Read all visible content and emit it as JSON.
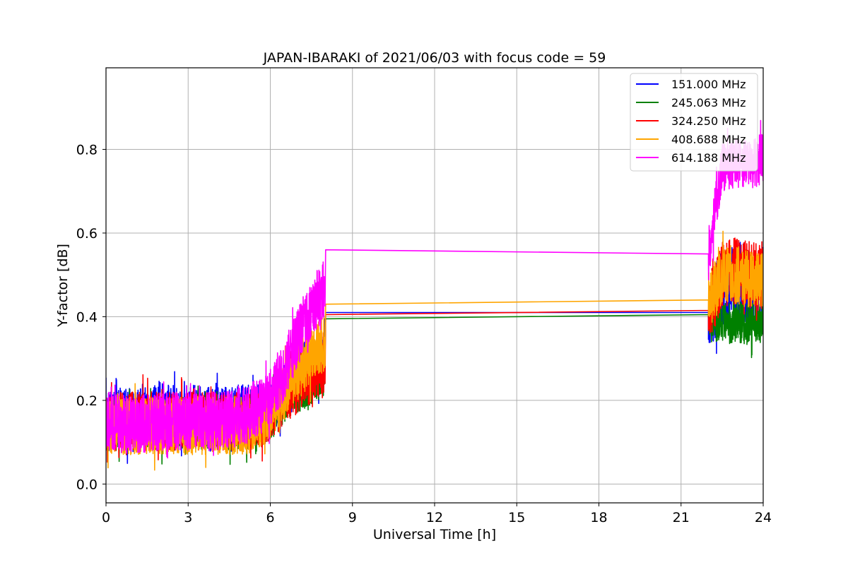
{
  "chart_data": {
    "type": "line",
    "title": "JAPAN-IBARAKI of 2021/06/03 with focus code = 59",
    "xlabel": "Universal Time [h]",
    "ylabel": "Y-factor [dB]",
    "xlim": [
      0,
      24
    ],
    "ylim": [
      -0.045,
      0.995
    ],
    "xticks": [
      0,
      3,
      6,
      9,
      12,
      15,
      18,
      21,
      24
    ],
    "xtick_labels": [
      "0",
      "3",
      "6",
      "9",
      "12",
      "15",
      "18",
      "21",
      "24"
    ],
    "yticks": [
      0.0,
      0.2,
      0.4,
      0.6,
      0.8
    ],
    "ytick_labels": [
      "0.0",
      "0.2",
      "0.4",
      "0.6",
      "0.8"
    ],
    "grid": true,
    "legend_position": "top-right",
    "series": [
      {
        "name": "151.000 MHz",
        "color": "#0000ff",
        "points": [
          [
            0.0,
            0.16
          ],
          [
            1.0,
            0.16
          ],
          [
            2.0,
            0.17
          ],
          [
            3.0,
            0.17
          ],
          [
            4.0,
            0.16
          ],
          [
            5.0,
            0.17
          ],
          [
            6.0,
            0.18
          ],
          [
            6.5,
            0.22
          ],
          [
            7.0,
            0.26
          ],
          [
            7.5,
            0.28
          ],
          [
            8.0,
            0.3
          ],
          [
            8.02,
            0.41
          ],
          [
            22.0,
            0.41
          ],
          [
            22.5,
            0.47
          ],
          [
            23.0,
            0.48
          ],
          [
            23.5,
            0.47
          ],
          [
            24.0,
            0.48
          ]
        ],
        "noise": [
          {
            "x_start": 0.0,
            "x_end": 8.0,
            "amplitude": 0.07
          },
          {
            "x_start": 22.0,
            "x_end": 24.0,
            "amplitude": 0.09
          }
        ]
      },
      {
        "name": "245.063 MHz",
        "color": "#008000",
        "points": [
          [
            0.0,
            0.14
          ],
          [
            1.0,
            0.14
          ],
          [
            2.0,
            0.14
          ],
          [
            3.0,
            0.14
          ],
          [
            4.0,
            0.14
          ],
          [
            5.0,
            0.14
          ],
          [
            6.0,
            0.16
          ],
          [
            6.5,
            0.2
          ],
          [
            7.0,
            0.23
          ],
          [
            7.5,
            0.25
          ],
          [
            8.0,
            0.27
          ],
          [
            8.02,
            0.395
          ],
          [
            22.0,
            0.405
          ],
          [
            22.5,
            0.38
          ],
          [
            23.0,
            0.39
          ],
          [
            23.5,
            0.38
          ],
          [
            24.0,
            0.39
          ]
        ],
        "noise": [
          {
            "x_start": 0.0,
            "x_end": 8.0,
            "amplitude": 0.06
          },
          {
            "x_start": 22.0,
            "x_end": 24.0,
            "amplitude": 0.05
          }
        ]
      },
      {
        "name": "324.250 MHz",
        "color": "#ff0000",
        "points": [
          [
            0.0,
            0.15
          ],
          [
            1.0,
            0.15
          ],
          [
            2.0,
            0.15
          ],
          [
            3.0,
            0.15
          ],
          [
            4.0,
            0.15
          ],
          [
            5.0,
            0.15
          ],
          [
            6.0,
            0.17
          ],
          [
            6.5,
            0.21
          ],
          [
            7.0,
            0.24
          ],
          [
            7.5,
            0.26
          ],
          [
            8.0,
            0.28
          ],
          [
            8.02,
            0.405
          ],
          [
            22.0,
            0.415
          ],
          [
            22.5,
            0.5
          ],
          [
            23.0,
            0.51
          ],
          [
            23.5,
            0.5
          ],
          [
            24.0,
            0.5
          ]
        ],
        "noise": [
          {
            "x_start": 0.0,
            "x_end": 8.0,
            "amplitude": 0.07
          },
          {
            "x_start": 22.0,
            "x_end": 24.0,
            "amplitude": 0.08
          }
        ]
      },
      {
        "name": "408.688 MHz",
        "color": "#ffa500",
        "points": [
          [
            0.0,
            0.14
          ],
          [
            1.0,
            0.14
          ],
          [
            2.0,
            0.14
          ],
          [
            3.0,
            0.14
          ],
          [
            4.0,
            0.14
          ],
          [
            5.0,
            0.14
          ],
          [
            6.0,
            0.17
          ],
          [
            6.5,
            0.22
          ],
          [
            7.0,
            0.27
          ],
          [
            7.5,
            0.31
          ],
          [
            8.0,
            0.34
          ],
          [
            8.02,
            0.43
          ],
          [
            22.0,
            0.44
          ],
          [
            22.5,
            0.5
          ],
          [
            23.0,
            0.5
          ],
          [
            23.5,
            0.49
          ],
          [
            24.0,
            0.49
          ]
        ],
        "noise": [
          {
            "x_start": 0.0,
            "x_end": 8.0,
            "amplitude": 0.07
          },
          {
            "x_start": 22.0,
            "x_end": 24.0,
            "amplitude": 0.07
          }
        ]
      },
      {
        "name": "614.188 MHz",
        "color": "#ff00ff",
        "points": [
          [
            0.0,
            0.15
          ],
          [
            1.0,
            0.14
          ],
          [
            2.0,
            0.15
          ],
          [
            3.0,
            0.15
          ],
          [
            4.0,
            0.15
          ],
          [
            5.0,
            0.16
          ],
          [
            6.0,
            0.2
          ],
          [
            6.5,
            0.27
          ],
          [
            7.0,
            0.35
          ],
          [
            7.5,
            0.42
          ],
          [
            8.0,
            0.47
          ],
          [
            8.02,
            0.56
          ],
          [
            22.0,
            0.55
          ],
          [
            22.5,
            0.76
          ],
          [
            23.0,
            0.77
          ],
          [
            23.5,
            0.76
          ],
          [
            24.0,
            0.78
          ]
        ],
        "noise": [
          {
            "x_start": 0.0,
            "x_end": 8.0,
            "amplitude": 0.07
          },
          {
            "x_start": 22.0,
            "x_end": 24.0,
            "amplitude": 0.06
          }
        ]
      }
    ]
  }
}
